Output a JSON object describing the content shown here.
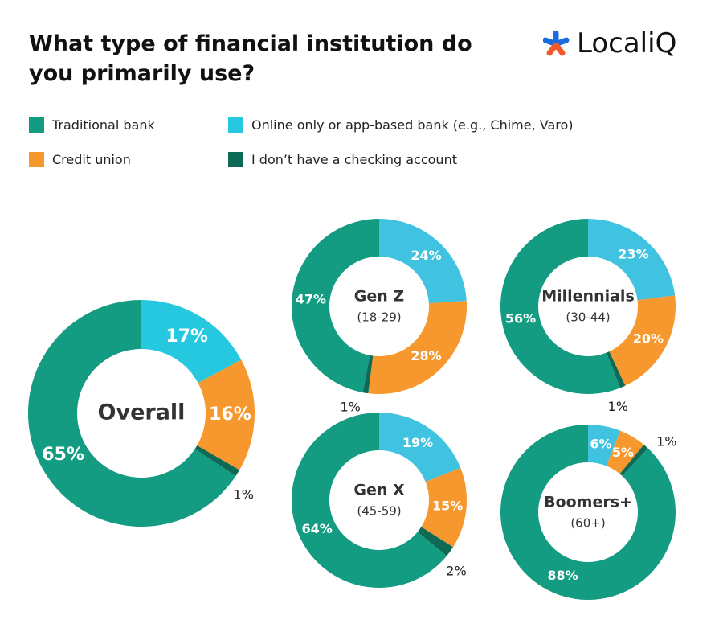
{
  "header": {
    "title": "What type of financial institution do you primarily use?",
    "logo": "LocaliQ"
  },
  "chart_data": [
    {
      "type": "donut",
      "title": "Overall",
      "categories": [
        "Traditional bank",
        "Online only or app-based bank (e.g., Chime, Varo)",
        "Credit union",
        "I don’t have a checking account"
      ],
      "values": [
        65,
        17,
        16,
        1
      ],
      "value_labels": [
        "65%",
        "17%",
        "16%",
        "1%"
      ],
      "colors": [
        "#139c82",
        "#25c8df",
        "#f7982e",
        "#0e6a55"
      ]
    },
    {
      "type": "donut",
      "title": "Gen Z",
      "subtitle": "(18-29)",
      "categories": [
        "Traditional bank",
        "Online only or app-based bank (e.g., Chime, Varo)",
        "Credit union",
        "I don’t have a checking account"
      ],
      "values": [
        47,
        24,
        28,
        1
      ],
      "value_labels": [
        "47%",
        "24%",
        "28%",
        "1%"
      ],
      "colors": [
        "#139c82",
        "#40c3e1",
        "#f7982e",
        "#0e6a55"
      ]
    },
    {
      "type": "donut",
      "title": "Millennials",
      "subtitle": "(30-44)",
      "categories": [
        "Traditional bank",
        "Online only or app-based bank (e.g., Chime, Varo)",
        "Credit union",
        "I don’t have a checking account"
      ],
      "values": [
        56,
        23,
        20,
        1
      ],
      "value_labels": [
        "56%",
        "23%",
        "20%",
        "1%"
      ],
      "colors": [
        "#139c82",
        "#40c3e1",
        "#f7982e",
        "#0e6a55"
      ]
    },
    {
      "type": "donut",
      "title": "Gen X",
      "subtitle": "(45-59)",
      "categories": [
        "Traditional bank",
        "Online only or app-based bank (e.g., Chime, Varo)",
        "Credit union",
        "I don’t have a checking account"
      ],
      "values": [
        64,
        19,
        15,
        2
      ],
      "value_labels": [
        "64%",
        "19%",
        "15%",
        "2%"
      ],
      "colors": [
        "#139c82",
        "#40c3e1",
        "#f7982e",
        "#0e6a55"
      ]
    },
    {
      "type": "donut",
      "title": "Boomers+",
      "subtitle": "(60+)",
      "categories": [
        "Traditional bank",
        "Online only or app-based bank (e.g., Chime, Varo)",
        "Credit union",
        "I don’t have a checking account"
      ],
      "values": [
        88,
        6,
        5,
        1
      ],
      "value_labels": [
        "88%",
        "6%",
        "5%",
        "1%"
      ],
      "colors": [
        "#139c82",
        "#40c3e1",
        "#f7982e",
        "#0e6a55"
      ]
    }
  ]
}
